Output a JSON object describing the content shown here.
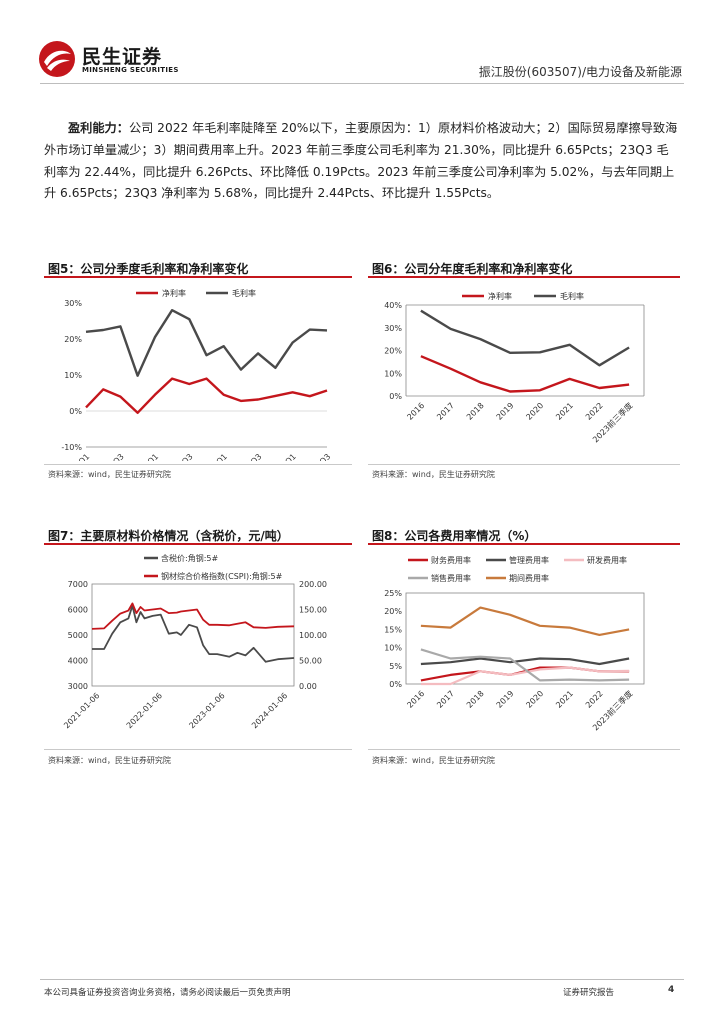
{
  "header": {
    "logo_cn": "民生证券",
    "logo_en": "MINSHENG SECURITIES",
    "right_text": "振江股份(603507)/电力设备及新能源"
  },
  "paragraph": {
    "lead": "盈利能力：",
    "body": "公司 2022 年毛利率陡降至 20%以下，主要原因为：1）原材料价格波动大；2）国际贸易摩擦导致海外市场订单量减少；3）期间费用率上升。2023 年前三季度公司毛利率为 21.30%，同比提升 6.65Pcts；23Q3 毛利率为 22.44%，同比提升 6.26Pcts、环比降低 0.19Pcts。2023 年前三季度公司净利率为 5.02%，与去年同期上升 6.65Pcts；23Q3 净利率为 5.68%，同比提升 2.44Pcts、环比提升 1.55Pcts。"
  },
  "figures": {
    "fig5": {
      "title": "图5：公司分季度毛利率和净利率变化",
      "source": "资料来源：wind，民生证券研究院"
    },
    "fig6": {
      "title": "图6：公司分年度毛利率和净利率变化",
      "source": "资料来源：wind，民生证券研究院"
    },
    "fig7": {
      "title": "图7：主要原材料价格情况（含税价，元/吨）",
      "source": "资料来源：wind，民生证券研究院"
    },
    "fig8": {
      "title": "图8：公司各费用率情况（%）",
      "source": "资料来源：wind，民生证券研究院"
    }
  },
  "chart_data": [
    {
      "id": "fig5",
      "type": "line",
      "title": "图5：公司分季度毛利率和净利率变化",
      "x": [
        "20Q1",
        "20Q2",
        "20Q3",
        "20Q4",
        "21Q1",
        "21Q2",
        "21Q3",
        "21Q4",
        "22Q1",
        "22Q2",
        "22Q3",
        "22Q4",
        "23Q1",
        "23Q2",
        "23Q3"
      ],
      "tick_labels": [
        "20Q1",
        "20Q3",
        "21Q1",
        "21Q3",
        "22Q1",
        "22Q3",
        "23Q1",
        "23Q3"
      ],
      "yticks": [
        "-10%",
        "0%",
        "10%",
        "20%",
        "30%"
      ],
      "ylim": [
        -10,
        30
      ],
      "series": [
        {
          "name": "净利率",
          "color": "#c4161c",
          "values": [
            1,
            6,
            4,
            -0.5,
            4.5,
            9,
            7.5,
            9,
            4.5,
            2.8,
            3.2,
            4.2,
            5.2,
            4.1,
            5.7
          ]
        },
        {
          "name": "毛利率",
          "color": "#4a4a4a",
          "values": [
            22,
            22.5,
            23.5,
            9.8,
            20.5,
            28,
            25.5,
            15.5,
            18,
            11.5,
            16,
            12,
            19,
            22.6,
            22.4
          ]
        }
      ]
    },
    {
      "id": "fig6",
      "type": "line",
      "title": "图6：公司分年度毛利率和净利率变化",
      "x": [
        "2016",
        "2017",
        "2018",
        "2019",
        "2020",
        "2021",
        "2022",
        "2023前三季度"
      ],
      "yticks": [
        "0%",
        "10%",
        "20%",
        "30%",
        "40%"
      ],
      "ylim": [
        0,
        40
      ],
      "series": [
        {
          "name": "净利率",
          "color": "#c4161c",
          "values": [
            17.5,
            12,
            6,
            2,
            2.5,
            7.5,
            3.5,
            5
          ]
        },
        {
          "name": "毛利率",
          "color": "#4a4a4a",
          "values": [
            37.5,
            29.5,
            25,
            19,
            19.2,
            22.5,
            13.5,
            21.3
          ]
        }
      ]
    },
    {
      "id": "fig7",
      "type": "line",
      "title": "图7：主要原材料价格情况（含税价，元/吨）",
      "tick_labels": [
        "2021-01-06",
        "2022-01-06",
        "2023-01-06",
        "2024-01-06"
      ],
      "yticks_left": [
        "3000",
        "4000",
        "5000",
        "6000",
        "7000"
      ],
      "yticks_right": [
        "0.00",
        "50.00",
        "100.00",
        "150.00",
        "200.00"
      ],
      "ylim_left": [
        3000,
        7000
      ],
      "ylim_right": [
        0,
        200
      ],
      "series": [
        {
          "name": "含税价:角钢:5#",
          "color": "#4a4a4a",
          "axis": "left",
          "x": [
            0,
            0.06,
            0.1,
            0.14,
            0.18,
            0.2,
            0.22,
            0.24,
            0.26,
            0.3,
            0.34,
            0.38,
            0.42,
            0.44,
            0.48,
            0.52,
            0.55,
            0.58,
            0.62,
            0.68,
            0.72,
            0.76,
            0.8,
            0.86,
            0.92,
            1.0
          ],
          "values": [
            4450,
            4450,
            5050,
            5500,
            5650,
            6150,
            5500,
            5900,
            5650,
            5750,
            5800,
            5050,
            5100,
            5000,
            5400,
            5300,
            4600,
            4250,
            4250,
            4150,
            4300,
            4200,
            4500,
            3950,
            4050,
            4100
          ]
        },
        {
          "name": "钢材综合价格指数(CSPI):角钢:5#",
          "color": "#c4161c",
          "axis": "right",
          "x": [
            0,
            0.06,
            0.1,
            0.14,
            0.18,
            0.2,
            0.22,
            0.24,
            0.26,
            0.3,
            0.34,
            0.38,
            0.42,
            0.44,
            0.48,
            0.52,
            0.55,
            0.58,
            0.62,
            0.68,
            0.72,
            0.76,
            0.8,
            0.86,
            0.92,
            1.0
          ],
          "values": [
            112,
            113,
            128,
            142,
            148,
            162,
            143,
            155,
            148,
            150,
            152,
            143,
            144,
            146,
            148,
            150,
            130,
            120,
            120,
            119,
            122,
            125,
            115,
            114,
            116,
            117
          ]
        }
      ]
    },
    {
      "id": "fig8",
      "type": "line",
      "title": "图8：公司各费用率情况（%）",
      "x": [
        "2016",
        "2017",
        "2018",
        "2019",
        "2020",
        "2021",
        "2022",
        "2023前三季度"
      ],
      "yticks": [
        "0%",
        "5%",
        "10%",
        "15%",
        "20%",
        "25%"
      ],
      "ylim": [
        0,
        25
      ],
      "series": [
        {
          "name": "财务费用率",
          "color": "#c4161c",
          "values": [
            1,
            2.5,
            3.5,
            2.5,
            4.5,
            4.5,
            3.5,
            3.5
          ]
        },
        {
          "name": "管理费用率",
          "color": "#4a4a4a",
          "values": [
            5.5,
            6,
            7,
            6,
            7,
            6.8,
            5.5,
            7
          ]
        },
        {
          "name": "研发费用率",
          "color": "#f4bcc0",
          "values": [
            0,
            0,
            3.5,
            2.5,
            4,
            4.5,
            3.5,
            3.6
          ]
        },
        {
          "name": "销售费用率",
          "color": "#a9a9a9",
          "values": [
            9.5,
            7,
            7.5,
            7,
            1,
            1.2,
            1,
            1.2
          ]
        },
        {
          "name": "期间费用率",
          "color": "#c87a3c",
          "values": [
            16,
            15.5,
            21,
            19,
            16,
            15.5,
            13.5,
            15
          ]
        }
      ]
    }
  ],
  "footer": {
    "left": "本公司具备证券投资咨询业务资格，请务必阅读最后一页免责声明",
    "right": "证券研究报告",
    "page": "4"
  }
}
